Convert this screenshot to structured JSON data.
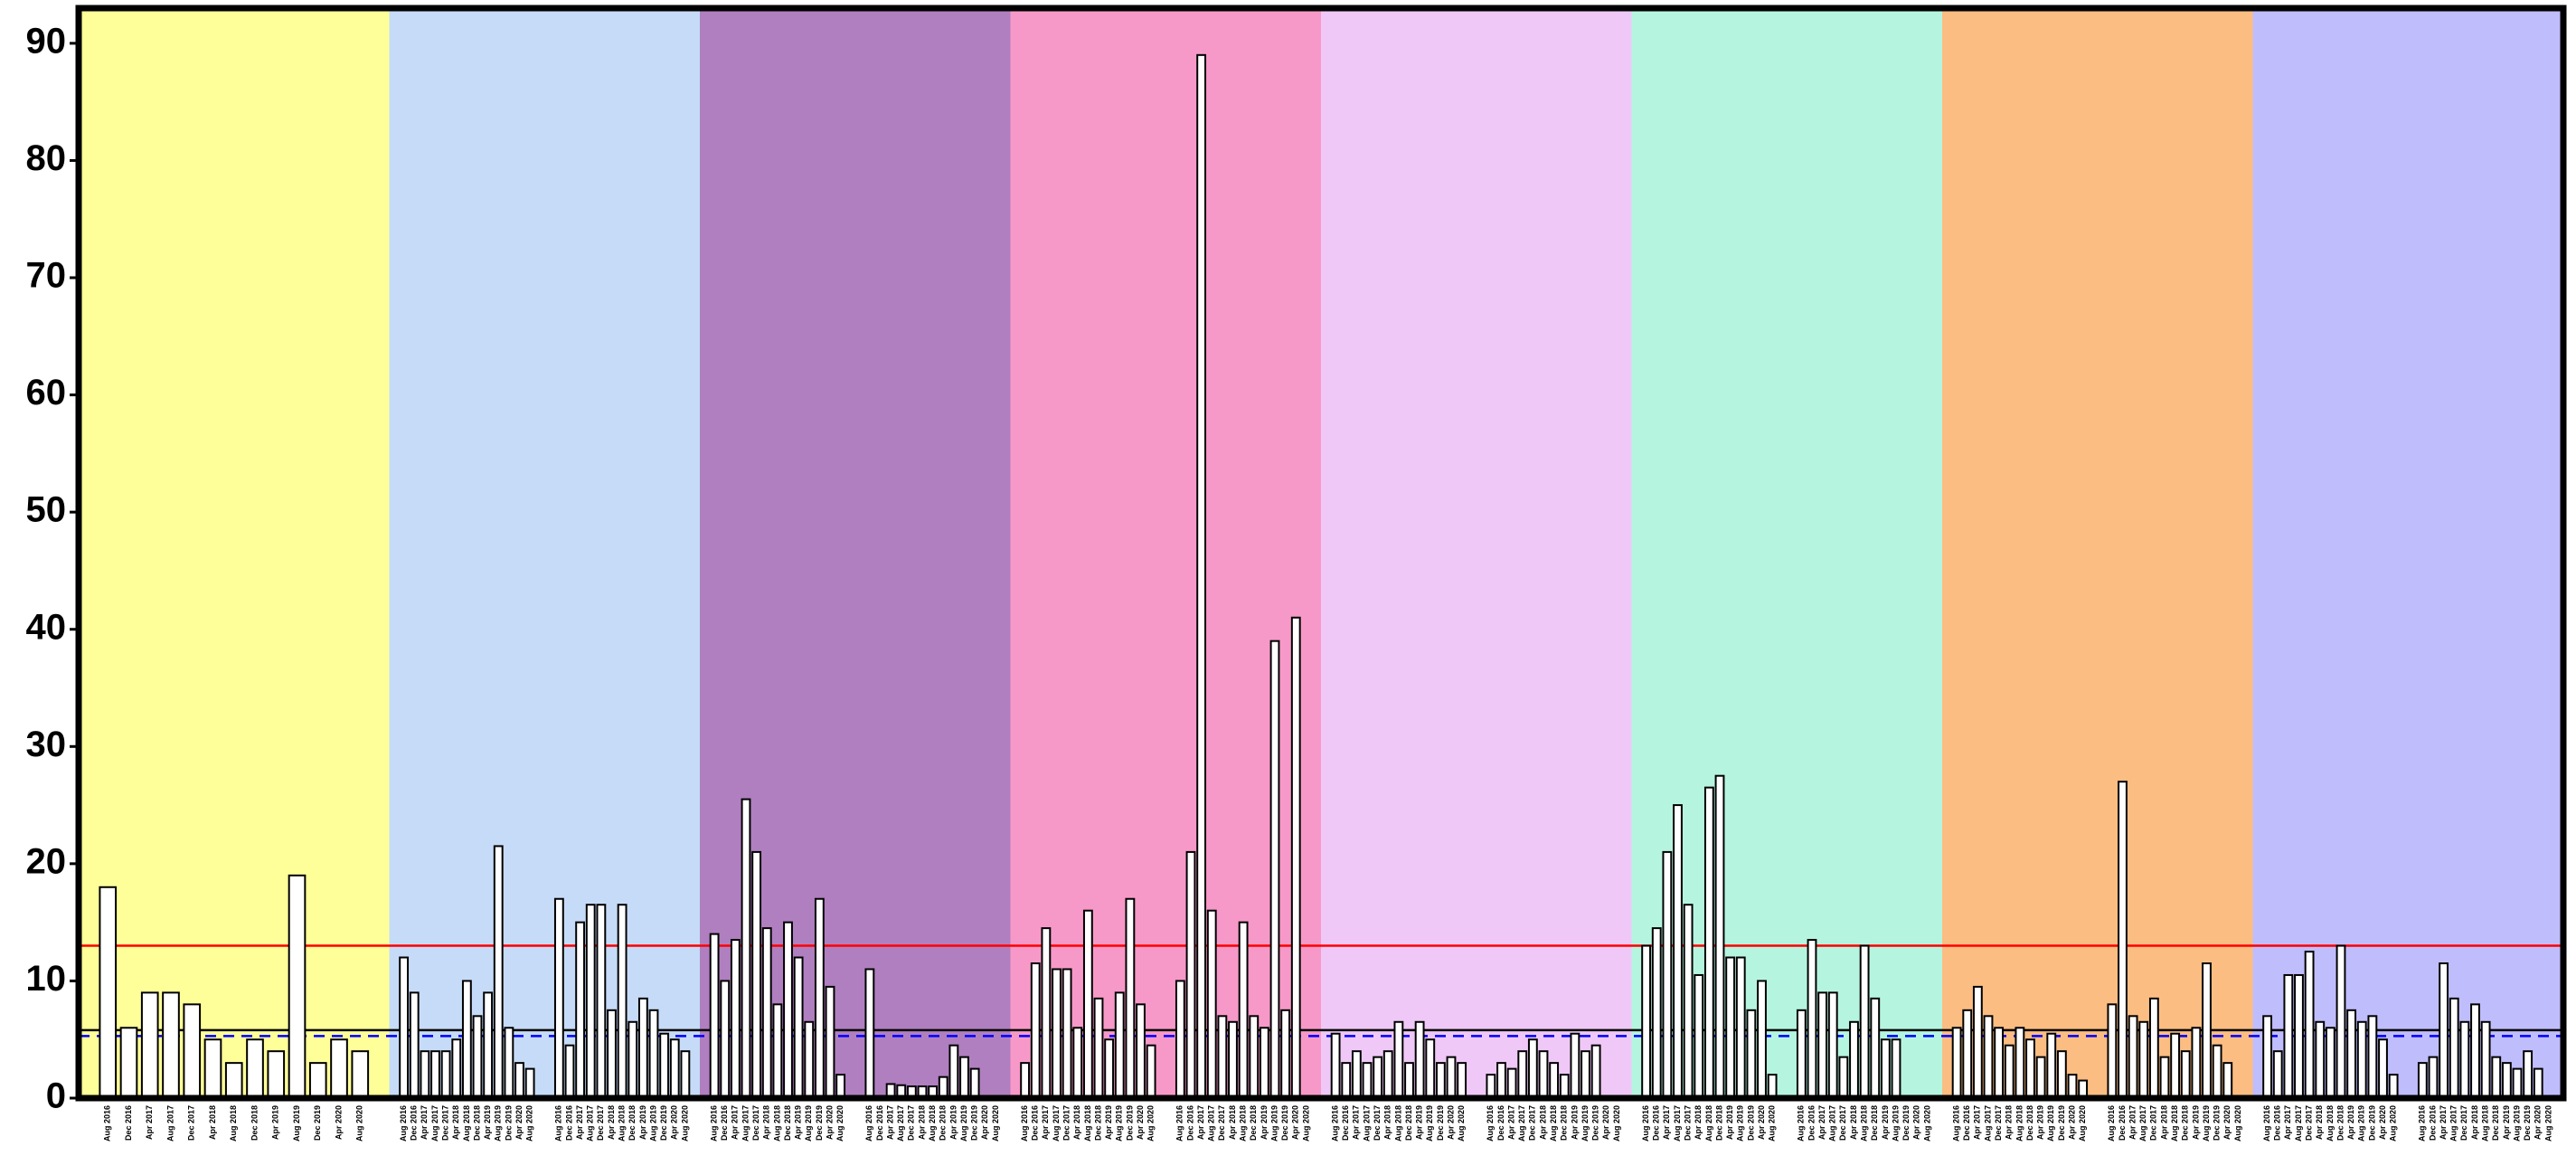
{
  "chart_data": {
    "type": "bar",
    "categories": [
      "Aug 2016",
      "Dec 2016",
      "Apr 2017",
      "Aug 2017",
      "Dec 2017",
      "Apr 2018",
      "Aug 2018",
      "Dec 2018",
      "Apr 2019",
      "Aug 2019",
      "Dec 2019",
      "Apr 2020",
      "Aug 2020"
    ],
    "ylim": [
      0,
      93
    ],
    "yticks": [
      0,
      10,
      20,
      30,
      40,
      50,
      60,
      70,
      80,
      90
    ],
    "bar_color": "#ffffff",
    "panels": [
      {
        "color": "#ffff99",
        "groups": [
          [
            18,
            6,
            9,
            9,
            8,
            5,
            3,
            5,
            4,
            19,
            3,
            5,
            4
          ]
        ]
      },
      {
        "color": "#c6dbf7",
        "groups": [
          [
            12,
            9,
            4,
            4,
            4,
            5,
            10,
            7,
            9,
            21.5,
            6,
            3,
            2.5
          ],
          [
            17,
            4.5,
            15,
            16.5,
            16.5,
            7.5,
            16.5,
            6.5,
            8.5,
            7.5,
            5.5,
            5,
            4
          ]
        ]
      },
      {
        "color": "#b07fc0",
        "groups": [
          [
            14,
            10,
            13.5,
            25.5,
            21,
            14.5,
            8,
            15,
            12,
            6.5,
            17,
            9.5,
            2
          ],
          [
            11,
            0,
            1.2,
            1.1,
            1,
            1,
            1,
            1.8,
            4.5,
            3.5,
            2.5,
            0,
            0
          ]
        ]
      },
      {
        "color": "#f799c8",
        "groups": [
          [
            3,
            11.5,
            14.5,
            11,
            11,
            6,
            16,
            8.5,
            5,
            9,
            17,
            8,
            4.5
          ],
          [
            10,
            21,
            89,
            16,
            7,
            6.5,
            15,
            7,
            6,
            39,
            7.5,
            41,
            0
          ]
        ]
      },
      {
        "color": "#efc8f7",
        "groups": [
          [
            5.5,
            3,
            4,
            3,
            3.5,
            4,
            6.5,
            3,
            6.5,
            5,
            3,
            3.5,
            3
          ],
          [
            2,
            3,
            2.5,
            4,
            5,
            4,
            3,
            2,
            5.5,
            4,
            4.5,
            0,
            0
          ]
        ]
      },
      {
        "color": "#b5f5e0",
        "groups": [
          [
            13,
            14.5,
            21,
            25,
            16.5,
            10.5,
            26.5,
            27.5,
            12,
            12,
            7.5,
            10,
            2
          ],
          [
            7.5,
            13.5,
            9,
            9,
            3.5,
            6.5,
            13,
            8.5,
            5,
            5,
            0,
            0,
            0
          ]
        ]
      },
      {
        "color": "#fbbd82",
        "groups": [
          [
            6,
            7.5,
            9.5,
            7,
            6,
            4.5,
            6,
            5,
            3.5,
            5.5,
            4,
            2,
            1.5
          ],
          [
            8,
            27,
            7,
            6.5,
            8.5,
            3.5,
            5.5,
            4,
            6,
            11.5,
            4.5,
            3,
            0
          ]
        ]
      },
      {
        "color": "#c0bdfd",
        "groups": [
          [
            7,
            4,
            10.5,
            10.5,
            12.5,
            6.5,
            6,
            13,
            7.5,
            6.5,
            7,
            5,
            2
          ],
          [
            3,
            3.5,
            11.5,
            8.5,
            6.5,
            8,
            6.5,
            3.5,
            3,
            2.5,
            4,
            2.5,
            0
          ]
        ]
      }
    ],
    "reference_lines": [
      {
        "value": 13,
        "color": "#ff0000",
        "style": "solid"
      },
      {
        "value": 5.8,
        "color": "#000000",
        "style": "solid"
      },
      {
        "value": 5.3,
        "color": "#0000ff",
        "style": "dashed"
      }
    ]
  }
}
